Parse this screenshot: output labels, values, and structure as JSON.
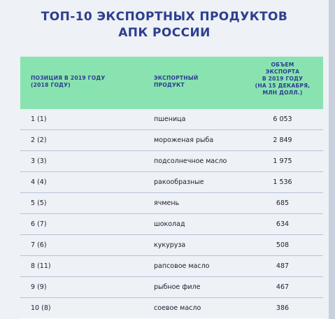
{
  "title": {
    "line1": "ТОП-10 ЭКСПОРТНЫХ ПРОДУКТОВ",
    "line2": "АПК РОССИИ"
  },
  "table": {
    "headers": [
      "ПОЗИЦИЯ В 2019 ГОДУ\n(2018 ГОДУ)",
      "ЭКСПОРТНЫЙ\nПРОДУКТ",
      "ОБЪЕМ\nЭКСПОРТА\nВ 2019 ГОДУ\n(НА 15 ДЕКАБРЯ,\nМЛН ДОЛЛ.)"
    ],
    "rows": [
      {
        "position": "1 (1)",
        "product": "пшеница",
        "value": "6 053"
      },
      {
        "position": "2 (2)",
        "product": "мороженая рыба",
        "value": "2 849"
      },
      {
        "position": "3 (3)",
        "product": "подсолнечное масло",
        "value": "1 975"
      },
      {
        "position": "4 (4)",
        "product": "ракообразные",
        "value": "1 536"
      },
      {
        "position": "5 (5)",
        "product": "ячмень",
        "value": "685"
      },
      {
        "position": "6 (7)",
        "product": "шоколад",
        "value": "634"
      },
      {
        "position": "7 (6)",
        "product": "кукуруза",
        "value": "508"
      },
      {
        "position": "8 (11)",
        "product": "рапсовое масло",
        "value": "487"
      },
      {
        "position": "9 (9)",
        "product": "рыбное филе",
        "value": "467"
      },
      {
        "position": "10 (8)",
        "product": "соевое масло",
        "value": "386"
      }
    ]
  },
  "colors": {
    "title": "#2d3f8e",
    "header_bg": "#89e3b0",
    "background": "#eef1f6",
    "row_divider": "#b7c3d9"
  }
}
